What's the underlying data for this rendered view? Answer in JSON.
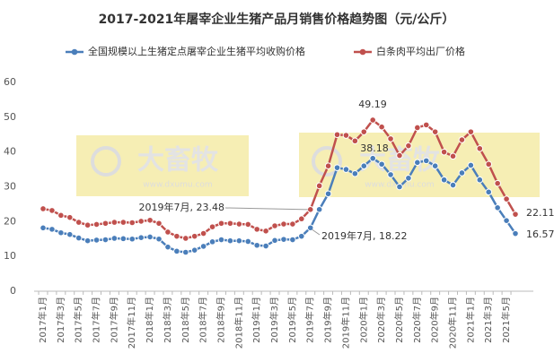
{
  "chart_data": {
    "type": "line",
    "title": "2017-2021年屠宰企业生猪产品月销售价格趋势图（元/公斤）",
    "categories": [
      "2017年1月",
      null,
      "2017年3月",
      null,
      "2017年5月",
      null,
      "2017年7月",
      null,
      "2017年9月",
      null,
      "2017年11月",
      null,
      "2018年1月",
      null,
      "2018年3月",
      null,
      "2018年5月",
      null,
      "2018年7月",
      null,
      "2018年9月",
      null,
      "2018年11月",
      null,
      "2019年1月",
      null,
      "2019年3月",
      null,
      "2019年5月",
      null,
      "2019年7月",
      null,
      "2019年9月",
      null,
      "2019年11月",
      null,
      "2020年1月",
      null,
      "2020年3月",
      null,
      "2020年5月",
      null,
      "2020年7月",
      null,
      "2020年9月",
      null,
      "2020年11月",
      null,
      "2021年1月",
      null,
      "2021年3月",
      null,
      "2021年5月",
      null
    ],
    "series": [
      {
        "name": "全国规模以上生猪定点屠宰企业生猪平均收购价格",
        "color": "#4a7eba",
        "values": [
          18.2,
          17.8,
          16.8,
          16.3,
          15.3,
          14.5,
          14.7,
          14.8,
          15.2,
          15.1,
          15.0,
          15.4,
          15.6,
          15.0,
          12.7,
          11.5,
          11.2,
          11.8,
          12.9,
          14.2,
          14.8,
          14.5,
          14.5,
          14.3,
          13.2,
          13.0,
          14.6,
          14.9,
          14.8,
          15.8,
          18.22,
          23.5,
          28.0,
          35.5,
          35.0,
          33.8,
          36.0,
          38.18,
          36.5,
          33.5,
          30.0,
          32.5,
          37.0,
          37.5,
          36.0,
          32.0,
          30.5,
          34.0,
          36.2,
          32.0,
          28.5,
          24.0,
          20.3,
          16.57
        ]
      },
      {
        "name": "白条肉平均出厂价格",
        "color": "#c0504d",
        "values": [
          23.7,
          23.2,
          21.8,
          21.2,
          19.8,
          19.0,
          19.2,
          19.5,
          19.8,
          19.8,
          19.7,
          20.1,
          20.4,
          19.5,
          17.0,
          15.8,
          15.2,
          15.8,
          16.6,
          18.5,
          19.5,
          19.5,
          19.3,
          19.2,
          17.8,
          17.3,
          18.8,
          19.3,
          19.3,
          20.8,
          23.48,
          30.3,
          36.0,
          45.0,
          44.8,
          43.2,
          45.8,
          49.19,
          47.2,
          43.8,
          39.0,
          41.8,
          47.0,
          47.8,
          45.8,
          40.0,
          38.8,
          43.5,
          45.8,
          41.0,
          36.5,
          31.0,
          26.5,
          22.11
        ]
      }
    ],
    "annotations": [
      "2019年7月, 23.48",
      "2019年7月, 18.22",
      "49.19",
      "38.18",
      "22.11",
      "16.57"
    ],
    "watermark": [
      "大畜牧",
      "www.dxumu.com"
    ],
    "ylim": [
      0,
      60
    ],
    "yticks": [
      0,
      10,
      20,
      30,
      40,
      50,
      60
    ],
    "grid": false
  }
}
